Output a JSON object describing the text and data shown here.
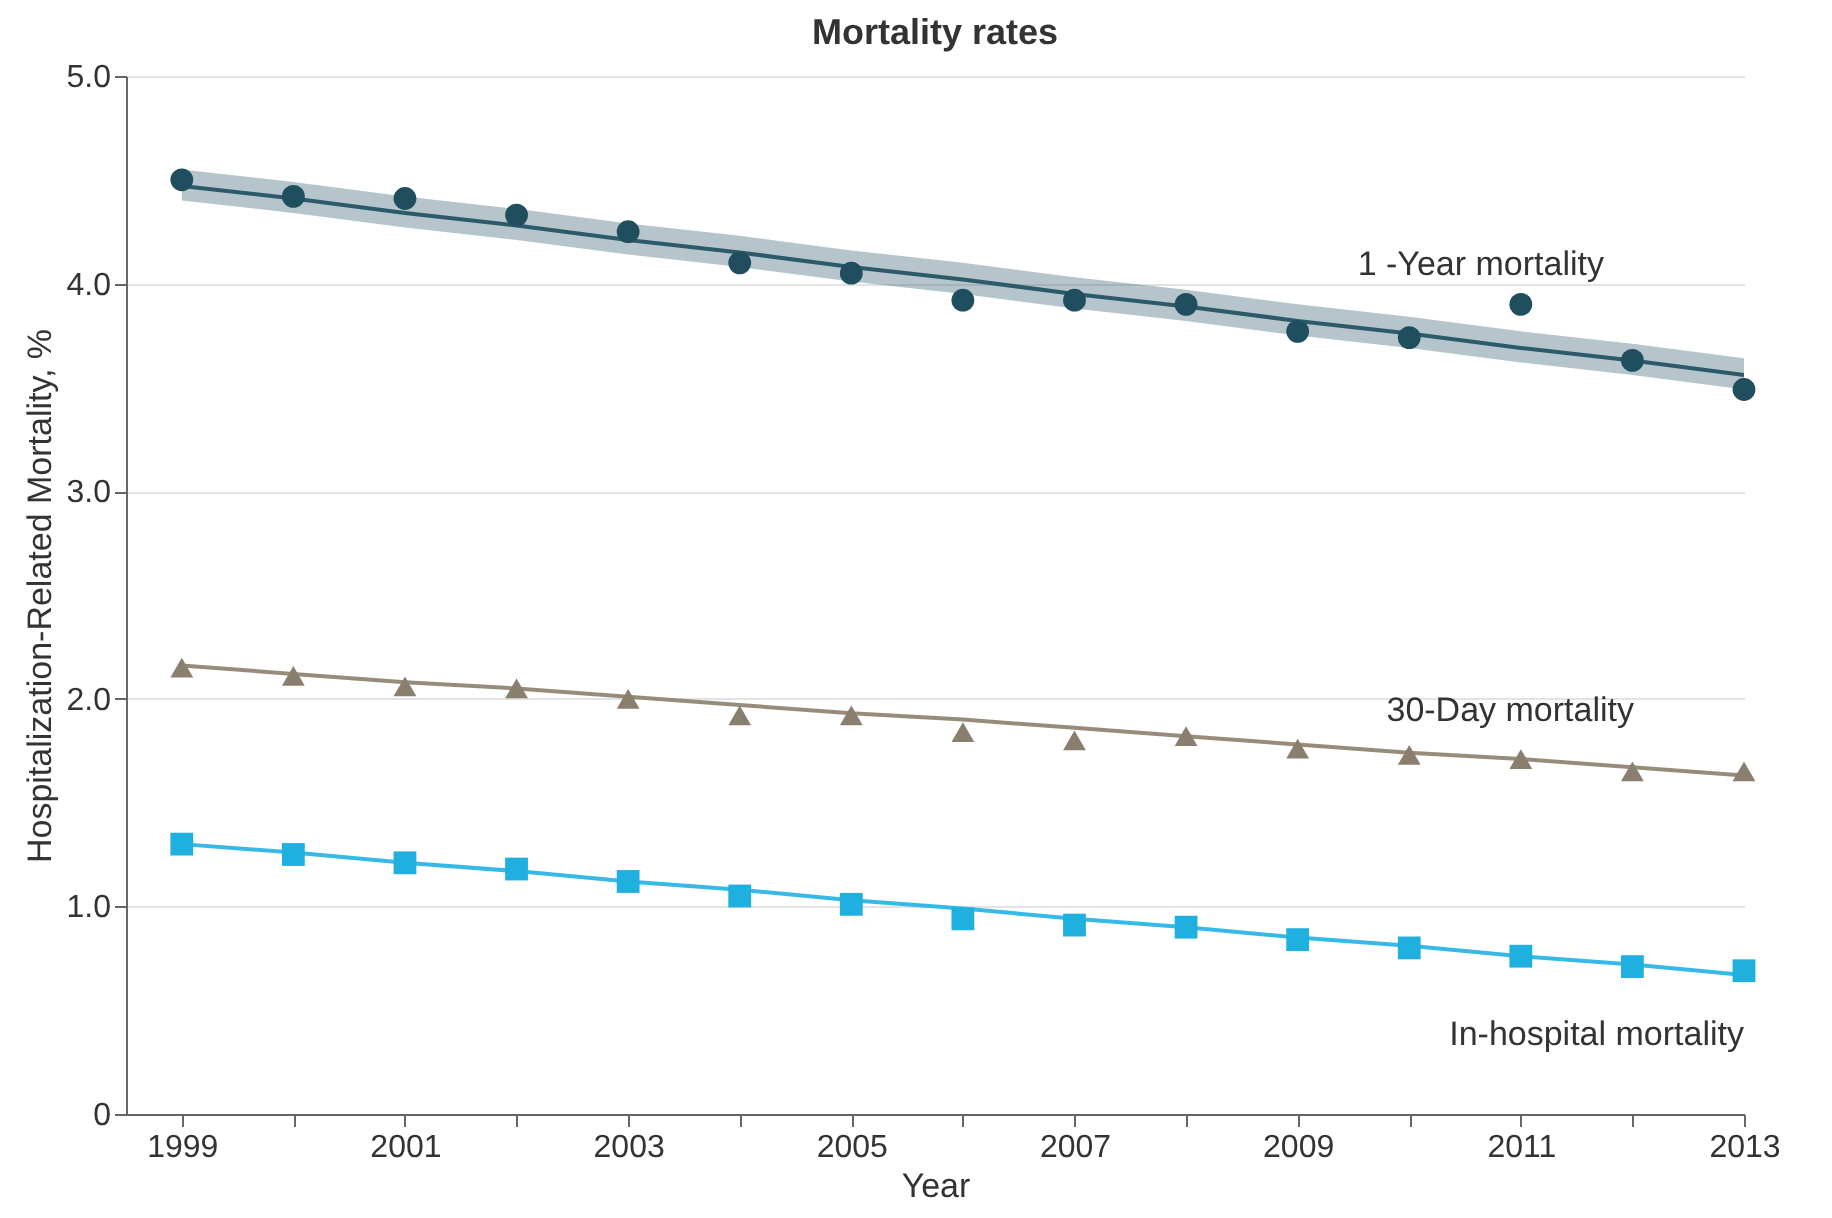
{
  "chart_data": {
    "type": "scatter",
    "title": "Mortality rates",
    "xlabel": "Year",
    "ylabel": "Hospitalization-Related Mortality, %",
    "x": [
      1999,
      2000,
      2001,
      2002,
      2003,
      2004,
      2005,
      2006,
      2007,
      2008,
      2009,
      2010,
      2011,
      2012,
      2013
    ],
    "series": [
      {
        "name": "1 -Year mortality",
        "type": "scatter",
        "marker": "circle",
        "color": "#1f4e5f",
        "values": [
          4.5,
          4.42,
          4.41,
          4.33,
          4.25,
          4.1,
          4.05,
          3.92,
          3.92,
          3.9,
          3.77,
          3.74,
          3.9,
          3.63,
          3.49
        ]
      },
      {
        "name": "30-Day mortality",
        "type": "scatter",
        "marker": "triangle",
        "color": "#8a7f6e",
        "values": [
          2.15,
          2.11,
          2.06,
          2.05,
          2.0,
          1.92,
          1.92,
          1.84,
          1.8,
          1.82,
          1.76,
          1.73,
          1.71,
          1.65,
          1.65
        ]
      },
      {
        "name": "In-hospital mortality",
        "type": "scatter",
        "marker": "square",
        "color": "#1fb0e0",
        "values": [
          1.3,
          1.25,
          1.21,
          1.18,
          1.12,
          1.05,
          1.01,
          0.94,
          0.91,
          0.9,
          0.84,
          0.8,
          0.76,
          0.71,
          0.69
        ]
      },
      {
        "type": "line",
        "marker": "none",
        "color": "#2d5a69",
        "values": [
          4.47,
          4.41,
          4.34,
          4.28,
          4.21,
          4.15,
          4.08,
          4.02,
          3.95,
          3.89,
          3.82,
          3.76,
          3.69,
          3.63,
          3.56
        ],
        "lower": [
          4.4,
          4.34,
          4.27,
          4.21,
          4.14,
          4.08,
          4.01,
          3.95,
          3.88,
          3.82,
          3.75,
          3.69,
          3.62,
          3.56,
          3.49
        ],
        "upper": [
          4.55,
          4.49,
          4.42,
          4.36,
          4.29,
          4.23,
          4.16,
          4.1,
          4.03,
          3.97,
          3.9,
          3.84,
          3.77,
          3.71,
          3.64
        ]
      },
      {
        "type": "line",
        "marker": "none",
        "color": "#978c7b",
        "values": [
          2.16,
          2.12,
          2.08,
          2.05,
          2.01,
          1.97,
          1.93,
          1.9,
          1.86,
          1.82,
          1.78,
          1.74,
          1.71,
          1.67,
          1.63
        ]
      },
      {
        "type": "line",
        "marker": "none",
        "color": "#36b9e6",
        "values": [
          1.3,
          1.26,
          1.21,
          1.17,
          1.12,
          1.08,
          1.03,
          0.99,
          0.94,
          0.9,
          0.85,
          0.81,
          0.76,
          0.72,
          0.67
        ]
      }
    ],
    "xlim": [
      1998.5,
      2013
    ],
    "xticks": [
      1999,
      {
        "value": 2000,
        "label": null
      },
      2001,
      {
        "value": 2002,
        "label": null
      },
      2003,
      {
        "value": 2004,
        "label": null
      },
      2005,
      {
        "value": 2006,
        "label": null
      },
      2007,
      {
        "value": 2008,
        "label": null
      },
      2009,
      {
        "value": 2010,
        "label": null
      },
      2011,
      {
        "value": 2012,
        "label": null
      },
      2013
    ],
    "ylim": [
      0,
      5
    ],
    "yticks": [
      0,
      {
        "value": 1,
        "label": "1.0"
      },
      {
        "value": 2,
        "label": "2.0"
      },
      {
        "value": 3,
        "label": "3.0"
      },
      {
        "value": 4,
        "label": "4.0"
      },
      {
        "value": 5,
        "label": "5.0"
      }
    ],
    "grid": "y"
  }
}
